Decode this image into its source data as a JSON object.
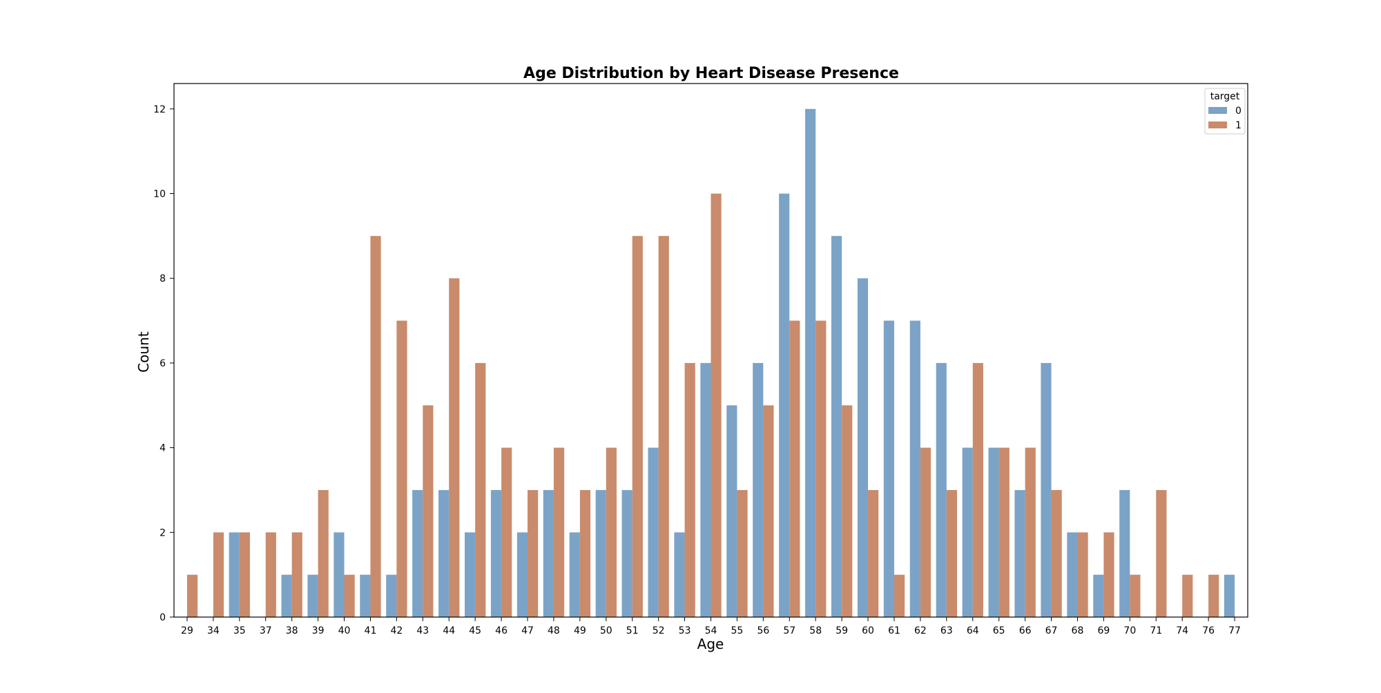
{
  "chart_data": {
    "type": "bar",
    "title": "Age Distribution by Heart Disease Presence",
    "xlabel": "Age",
    "ylabel": "Count",
    "ylim": [
      0,
      12.6
    ],
    "yticks": [
      0,
      2,
      4,
      6,
      8,
      10,
      12
    ],
    "grid": false,
    "legend": {
      "title": "target",
      "placement": "top-right"
    },
    "categories": [
      "29",
      "34",
      "35",
      "37",
      "38",
      "39",
      "40",
      "41",
      "42",
      "43",
      "44",
      "45",
      "46",
      "47",
      "48",
      "49",
      "50",
      "51",
      "52",
      "53",
      "54",
      "55",
      "56",
      "57",
      "58",
      "59",
      "60",
      "61",
      "62",
      "63",
      "64",
      "65",
      "66",
      "67",
      "68",
      "69",
      "70",
      "71",
      "74",
      "76",
      "77"
    ],
    "series": [
      {
        "name": "0",
        "color": "#7ba3c7",
        "values": [
          0,
          0,
          2,
          0,
          1,
          1,
          2,
          1,
          1,
          3,
          3,
          2,
          3,
          2,
          3,
          2,
          3,
          3,
          4,
          2,
          6,
          5,
          6,
          10,
          12,
          9,
          8,
          7,
          7,
          6,
          4,
          4,
          3,
          6,
          2,
          1,
          3,
          0,
          0,
          0,
          1
        ]
      },
      {
        "name": "1",
        "color": "#c98b6b",
        "values": [
          1,
          2,
          2,
          2,
          2,
          3,
          1,
          9,
          7,
          5,
          8,
          6,
          4,
          3,
          4,
          3,
          4,
          9,
          9,
          6,
          10,
          3,
          5,
          7,
          7,
          5,
          3,
          1,
          4,
          3,
          6,
          4,
          4,
          3,
          2,
          2,
          1,
          3,
          1,
          1,
          0
        ]
      }
    ]
  }
}
